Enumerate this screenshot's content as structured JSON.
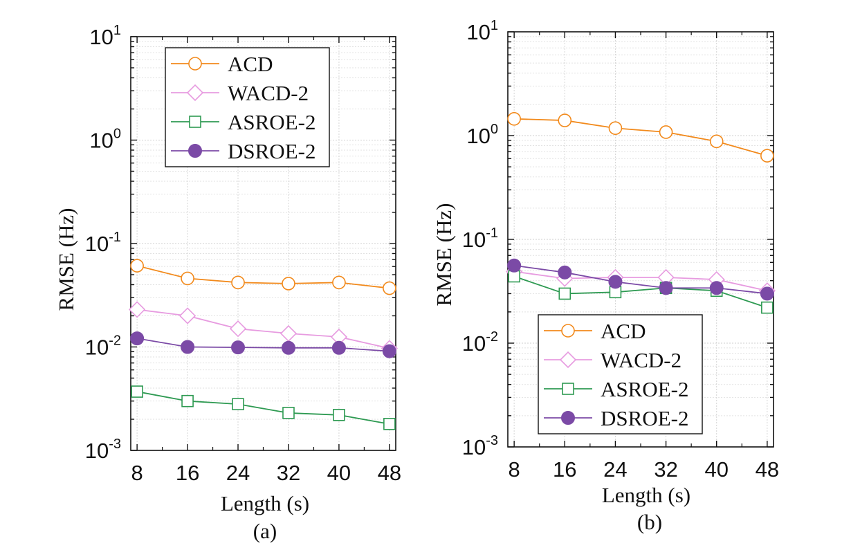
{
  "figure": {
    "panels": [
      {
        "caption": "(a)",
        "xlabel": "Length (s)",
        "ylabel": "RMSE (Hz)",
        "legend_position": "upper-right"
      },
      {
        "caption": "(b)",
        "xlabel": "Length (s)",
        "ylabel": "RMSE (Hz)",
        "legend_position": "lower-right"
      }
    ]
  },
  "chart_data": [
    {
      "type": "line",
      "title": "",
      "xlabel": "Length (s)",
      "ylabel": "RMSE (Hz)",
      "yscale": "log",
      "ylim": [
        0.001,
        10
      ],
      "xlim": [
        7,
        49
      ],
      "x": [
        8,
        16,
        24,
        32,
        40,
        48
      ],
      "xticks": [
        "8",
        "16",
        "24",
        "32",
        "40",
        "48"
      ],
      "yticks": [
        {
          "base": "10",
          "exp": "1",
          "value": 10
        },
        {
          "base": "10",
          "exp": "0",
          "value": 1
        },
        {
          "base": "10",
          "exp": "-1",
          "value": 0.1
        },
        {
          "base": "10",
          "exp": "-2",
          "value": 0.01
        },
        {
          "base": "10",
          "exp": "-3",
          "value": 0.001
        }
      ],
      "grid": true,
      "legend": "upper-right",
      "series": [
        {
          "name": "ACD",
          "color": "#f28a1c",
          "marker": "circle-open",
          "values": [
            0.061,
            0.046,
            0.042,
            0.041,
            0.042,
            0.037
          ]
        },
        {
          "name": "WACD-2",
          "color": "#e79be0",
          "marker": "diamond-open",
          "values": [
            0.023,
            0.02,
            0.015,
            0.0135,
            0.0125,
            0.0097
          ]
        },
        {
          "name": "ASROE-2",
          "color": "#2e9a52",
          "marker": "square-open",
          "values": [
            0.0037,
            0.003,
            0.0028,
            0.0023,
            0.0022,
            0.0018
          ]
        },
        {
          "name": "DSROE-2",
          "color": "#7b4aa6",
          "marker": "circle-filled",
          "values": [
            0.0121,
            0.01,
            0.0099,
            0.0098,
            0.0098,
            0.0091
          ]
        }
      ]
    },
    {
      "type": "line",
      "title": "",
      "xlabel": "Length (s)",
      "ylabel": "RMSE (Hz)",
      "yscale": "log",
      "ylim": [
        0.001,
        10
      ],
      "xlim": [
        7,
        49
      ],
      "x": [
        8,
        16,
        24,
        32,
        40,
        48
      ],
      "xticks": [
        "8",
        "16",
        "24",
        "32",
        "40",
        "48"
      ],
      "yticks": [
        {
          "base": "10",
          "exp": "1",
          "value": 10
        },
        {
          "base": "10",
          "exp": "0",
          "value": 1
        },
        {
          "base": "10",
          "exp": "-1",
          "value": 0.1
        },
        {
          "base": "10",
          "exp": "-2",
          "value": 0.01
        },
        {
          "base": "10",
          "exp": "-3",
          "value": 0.001
        }
      ],
      "grid": true,
      "legend": "lower-right",
      "series": [
        {
          "name": "ACD",
          "color": "#f28a1c",
          "marker": "circle-open",
          "values": [
            1.45,
            1.4,
            1.18,
            1.08,
            0.88,
            0.64
          ]
        },
        {
          "name": "WACD-2",
          "color": "#e79be0",
          "marker": "diamond-open",
          "values": [
            0.049,
            0.042,
            0.043,
            0.043,
            0.041,
            0.032
          ]
        },
        {
          "name": "ASROE-2",
          "color": "#2e9a52",
          "marker": "square-open",
          "values": [
            0.044,
            0.03,
            0.031,
            0.034,
            0.032,
            0.022
          ]
        },
        {
          "name": "DSROE-2",
          "color": "#7b4aa6",
          "marker": "circle-filled",
          "values": [
            0.056,
            0.048,
            0.039,
            0.034,
            0.034,
            0.03
          ]
        }
      ]
    }
  ]
}
